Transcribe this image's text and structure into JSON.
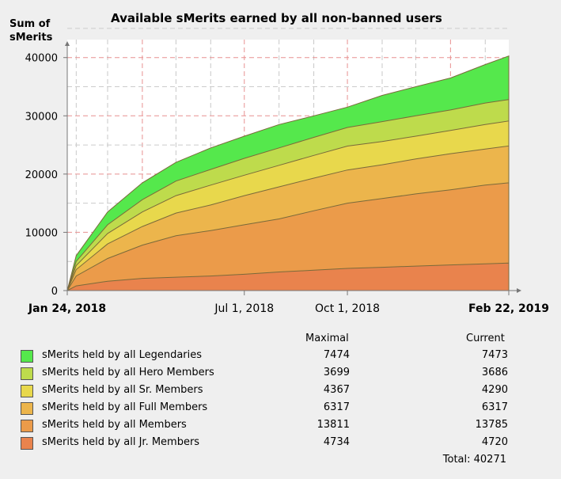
{
  "chart_data": {
    "type": "area",
    "stacked": true,
    "title": "Available sMerits earned by all non-banned users",
    "ylabel_line1": "Sum of",
    "ylabel_line2": "sMerits",
    "y_ticks": [
      0,
      10000,
      20000,
      30000,
      40000
    ],
    "ylim": [
      0,
      42000
    ],
    "xlim": [
      "2018-01-24",
      "2019-02-22"
    ],
    "x_labels": [
      {
        "date": "2018-01-24",
        "label": "Jan 24, 2018",
        "bold": true
      },
      {
        "date": "2018-07-01",
        "label": "Jul 1, 2018",
        "bold": false
      },
      {
        "date": "2018-10-01",
        "label": "Oct 1, 2018",
        "bold": false
      },
      {
        "date": "2019-02-22",
        "label": "Feb 22, 2019",
        "bold": true
      }
    ],
    "grid": true,
    "x": [
      "2018-01-24",
      "2018-02-01",
      "2018-03-01",
      "2018-04-01",
      "2018-05-01",
      "2018-06-01",
      "2018-07-01",
      "2018-08-01",
      "2018-09-01",
      "2018-10-01",
      "2018-11-01",
      "2018-12-01",
      "2019-01-01",
      "2019-02-01",
      "2019-02-22"
    ],
    "totals_by_series_top": [
      {
        "name": "sMerits held by all Jr. Members",
        "values": [
          0,
          800,
          1600,
          2100,
          2300,
          2500,
          2800,
          3200,
          3500,
          3800,
          4000,
          4200,
          4400,
          4600,
          4720
        ]
      },
      {
        "name": "sMerits held by all Members",
        "values": [
          0,
          2500,
          5500,
          7800,
          9400,
          10300,
          11300,
          12300,
          13700,
          15000,
          15800,
          16600,
          17300,
          18100,
          18505
        ]
      },
      {
        "name": "sMerits held by all Full Members",
        "values": [
          0,
          3600,
          8000,
          11000,
          13300,
          14700,
          16300,
          17800,
          19300,
          20700,
          21600,
          22600,
          23500,
          24300,
          24822
        ]
      },
      {
        "name": "sMerits held by all Sr. Members",
        "values": [
          0,
          4300,
          9800,
          13500,
          16300,
          18100,
          19800,
          21500,
          23200,
          24800,
          25600,
          26500,
          27500,
          28500,
          29112
        ]
      },
      {
        "name": "sMerits held by all Hero Members",
        "values": [
          0,
          5000,
          11300,
          15600,
          18800,
          20800,
          22700,
          24500,
          26300,
          28000,
          29000,
          30000,
          31000,
          32200,
          32798
        ]
      },
      {
        "name": "sMerits held by all Legendaries",
        "values": [
          0,
          6000,
          13500,
          18500,
          22000,
          24500,
          26500,
          28500,
          30000,
          31500,
          33500,
          35000,
          36500,
          38800,
          40271
        ]
      }
    ]
  },
  "legend": {
    "header_max": "Maximal",
    "header_cur": "Current",
    "items": [
      {
        "name": "sMerits held by all Legendaries",
        "max": "7474",
        "cur": "7473",
        "color": "#55e84c"
      },
      {
        "name": "sMerits held by all Hero Members",
        "max": "3699",
        "cur": "3686",
        "color": "#bedb4c"
      },
      {
        "name": "sMerits held by all Sr. Members",
        "max": "4367",
        "cur": "4290",
        "color": "#e8d84c"
      },
      {
        "name": "sMerits held by all Full Members",
        "max": "6317",
        "cur": "6317",
        "color": "#ecb54c"
      },
      {
        "name": "sMerits held by all Members",
        "max": "13811",
        "cur": "13785",
        "color": "#eb9b4a"
      },
      {
        "name": "sMerits held by all Jr. Members",
        "max": "4734",
        "cur": "4720",
        "color": "#e9834d"
      }
    ],
    "total": "Total: 40271"
  }
}
